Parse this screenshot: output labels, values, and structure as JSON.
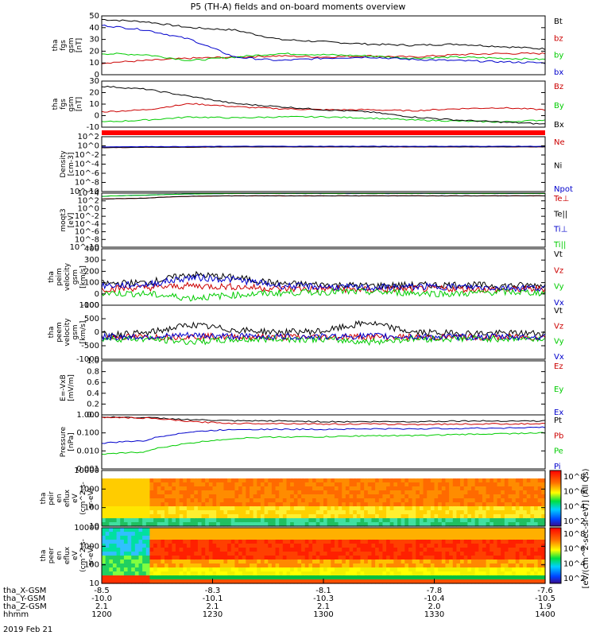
{
  "title": "P5 (TH-A) fields and on-board moments overview",
  "date": "2019 Feb 21",
  "colorbar": {
    "label": "[eV/(cm^2-sec-sr-eV)] (All Qs)",
    "ticks1": [
      "10^8",
      "10^6",
      "10^4",
      "10^2"
    ],
    "ticks2": [
      "10^8",
      "10^6",
      "10^4",
      "10^2"
    ]
  },
  "panels": [
    {
      "id": "fgs-mag",
      "ylabel": [
        "tha",
        "fgs",
        "gsm",
        "[nT]"
      ],
      "yticks": [
        "50",
        "40",
        "30",
        "20",
        "10",
        "0"
      ],
      "legend": [
        {
          "t": "Bt",
          "c": "#000000"
        },
        {
          "t": "bz",
          "c": "#cc0000"
        },
        {
          "t": "by",
          "c": "#00cc00"
        },
        {
          "t": "bx",
          "c": "#0000cc"
        }
      ]
    },
    {
      "id": "fgs-comp",
      "ylabel": [
        "tha",
        "fgs",
        "gsm",
        "[nT]"
      ],
      "yticks": [
        "30",
        "20",
        "10",
        "0",
        "-10"
      ],
      "legend": [
        {
          "t": "Bz",
          "c": "#cc0000"
        },
        {
          "t": "By",
          "c": "#00cc00"
        },
        {
          "t": "Bx",
          "c": "#000000"
        }
      ]
    },
    {
      "id": "density",
      "ylabel": [
        "Density",
        "[cm-3]"
      ],
      "yticks": [
        "10^2",
        "10^0",
        "10^-2",
        "10^-4",
        "10^-6",
        "10^-8",
        "10^-10"
      ],
      "legend": [
        {
          "t": "Ne",
          "c": "#cc0000"
        },
        {
          "t": "Ni",
          "c": "#000000"
        },
        {
          "t": "Npot",
          "c": "#0000cc"
        }
      ]
    },
    {
      "id": "temp",
      "ylabel": [
        "moqt3",
        "[eV]"
      ],
      "yticks": [
        "10^4",
        "10^2",
        "10^0",
        "10^-2",
        "10^-4",
        "10^-6",
        "10^-8",
        "10^-10"
      ],
      "legend": [
        {
          "t": "Te⊥",
          "c": "#cc0000"
        },
        {
          "t": "Te||",
          "c": "#000000"
        },
        {
          "t": "Ti⊥",
          "c": "#0000cc"
        },
        {
          "t": "Ti||",
          "c": "#00cc00"
        }
      ]
    },
    {
      "id": "peim-vel",
      "ylabel": [
        "tha",
        "peim",
        "velocity",
        "gsm",
        "[km/s]"
      ],
      "yticks": [
        "400",
        "300",
        "200",
        "100",
        "0",
        "-100"
      ],
      "legend": [
        {
          "t": "Vt",
          "c": "#000000"
        },
        {
          "t": "Vz",
          "c": "#cc0000"
        },
        {
          "t": "Vy",
          "c": "#00cc00"
        },
        {
          "t": "Vx",
          "c": "#0000cc"
        }
      ]
    },
    {
      "id": "peem-vel",
      "ylabel": [
        "tha",
        "peem",
        "velocity",
        "gsm",
        "[km/s]"
      ],
      "yticks": [
        "1000",
        "500",
        "0",
        "-500",
        "-1000"
      ],
      "legend": [
        {
          "t": "Vt",
          "c": "#000000"
        },
        {
          "t": "Vz",
          "c": "#cc0000"
        },
        {
          "t": "Vy",
          "c": "#00cc00"
        },
        {
          "t": "Vx",
          "c": "#0000cc"
        }
      ]
    },
    {
      "id": "efield",
      "ylabel": [
        "E=-VxB",
        "[mV/m]"
      ],
      "yticks": [
        "1.0",
        "0.8",
        "0.6",
        "0.4",
        "0.2",
        "0.0"
      ],
      "legend": [
        {
          "t": "Ez",
          "c": "#cc0000"
        },
        {
          "t": "Ey",
          "c": "#00cc00"
        },
        {
          "t": "Ex",
          "c": "#0000cc"
        }
      ]
    },
    {
      "id": "pressure",
      "ylabel": [
        "Pressure",
        "[nPa]"
      ],
      "yticks": [
        "1.000",
        "0.100",
        "0.010",
        "0.001"
      ],
      "legend": [
        {
          "t": "Pt",
          "c": "#000000"
        },
        {
          "t": "Pb",
          "c": "#cc0000"
        },
        {
          "t": "Pe",
          "c": "#00cc00"
        },
        {
          "t": "Pi",
          "c": "#0000cc"
        }
      ]
    },
    {
      "id": "peir-spec",
      "ylabel": [
        "tha",
        "peir",
        "en",
        "eflux",
        "eV",
        "(cm^2-s-",
        "sr-eV)"
      ],
      "yticks": [
        "10000",
        "1000",
        "100",
        "10"
      ],
      "legend": []
    },
    {
      "id": "peer-spec",
      "ylabel": [
        "tha",
        "peer",
        "en",
        "eflux",
        "eV",
        "(cm^2-s-",
        "sr-eV)"
      ],
      "yticks": [
        "10000",
        "1000",
        "100",
        "10"
      ],
      "legend": []
    }
  ],
  "xaxis": {
    "row_labels": [
      "tha_X-GSM",
      "tha_Y-GSM",
      "tha_Z-GSM",
      "hhmm"
    ],
    "ticks": [
      {
        "x": "-8.5",
        "y": "-10.0",
        "z": "2.1",
        "t": "1200"
      },
      {
        "x": "-8.3",
        "y": "-10.1",
        "z": "2.1",
        "t": "1230"
      },
      {
        "x": "-8.1",
        "y": "-10.3",
        "z": "2.1",
        "t": "1300"
      },
      {
        "x": "-7.8",
        "y": "-10.4",
        "z": "2.0",
        "t": "1330"
      },
      {
        "x": "-7.6",
        "y": "-10.5",
        "z": "1.9",
        "t": "1400"
      }
    ]
  },
  "chart_data": [
    {
      "type": "line",
      "title": "tha fgs gsm",
      "ylabel": "[nT]",
      "ylim": [
        0,
        50
      ],
      "series": [
        {
          "name": "Bt",
          "color": "#000000",
          "values": [
            47,
            45,
            40,
            38,
            30,
            28,
            26,
            25,
            26,
            24,
            22
          ]
        },
        {
          "name": "bz",
          "color": "#cc0000",
          "values": [
            10,
            12,
            14,
            15,
            16,
            15,
            16,
            15,
            17,
            18,
            18
          ]
        },
        {
          "name": "by",
          "color": "#00cc00",
          "values": [
            18,
            17,
            12,
            15,
            18,
            17,
            16,
            14,
            15,
            14,
            13
          ]
        },
        {
          "name": "bx",
          "color": "#0000cc",
          "values": [
            42,
            38,
            30,
            15,
            12,
            14,
            15,
            13,
            12,
            11,
            10
          ]
        }
      ]
    },
    {
      "type": "line",
      "title": "tha fgs gsm",
      "ylabel": "[nT]",
      "ylim": [
        -15,
        30
      ],
      "series": [
        {
          "name": "Bz",
          "color": "#cc0000",
          "values": [
            0,
            2,
            8,
            5,
            3,
            2,
            2,
            1,
            3,
            4,
            2
          ]
        },
        {
          "name": "By",
          "color": "#00cc00",
          "values": [
            -10,
            -8,
            -5,
            -6,
            -5,
            -5,
            -6,
            -8,
            -9,
            -10,
            -8
          ]
        },
        {
          "name": "Bx",
          "color": "#000000",
          "values": [
            25,
            22,
            15,
            8,
            5,
            2,
            0,
            -5,
            -8,
            -10,
            -12
          ]
        }
      ]
    },
    {
      "type": "line",
      "title": "Density",
      "ylabel": "[cm-3]",
      "ylim": [
        1e-10,
        100
      ],
      "log": true,
      "series": [
        {
          "name": "Ne",
          "color": "#cc0000",
          "values": [
            0.4,
            0.5,
            0.5,
            0.6,
            0.6,
            0.6,
            0.6,
            0.6,
            0.6,
            0.6,
            0.6
          ]
        },
        {
          "name": "Ni",
          "color": "#000000",
          "values": [
            0.4,
            0.5,
            0.5,
            0.6,
            0.6,
            0.6,
            0.6,
            0.6,
            0.6,
            0.6,
            0.6
          ]
        },
        {
          "name": "Npot",
          "color": "#0000cc",
          "values": [
            0.6,
            0.7,
            0.7,
            0.8,
            0.8,
            0.8,
            0.8,
            0.8,
            0.8,
            0.8,
            0.8
          ]
        }
      ]
    },
    {
      "type": "line",
      "title": "moqt3",
      "ylabel": "[eV]",
      "ylim": [
        1e-10,
        10000
      ],
      "log": true,
      "series": [
        {
          "name": "Te⊥",
          "color": "#cc0000",
          "values": [
            300,
            500,
            1500,
            2000,
            2000,
            2000,
            2000,
            2000,
            2000,
            2000,
            2000
          ]
        },
        {
          "name": "Te||",
          "color": "#000000",
          "values": [
            300,
            500,
            1500,
            2000,
            2000,
            2000,
            2000,
            2000,
            2000,
            2000,
            2000
          ]
        },
        {
          "name": "Ti⊥",
          "color": "#0000cc",
          "values": [
            1500,
            3000,
            6000,
            8000,
            8000,
            8000,
            8000,
            8000,
            8000,
            8000,
            8000
          ]
        },
        {
          "name": "Ti||",
          "color": "#00cc00",
          "values": [
            1500,
            3000,
            6000,
            8000,
            8000,
            8000,
            8000,
            8000,
            8000,
            8000,
            8000
          ]
        }
      ]
    },
    {
      "type": "line",
      "title": "tha peim velocity gsm",
      "ylabel": "[km/s]",
      "ylim": [
        -150,
        400
      ],
      "series": [
        {
          "name": "Vt",
          "color": "#000000",
          "values": [
            60,
            70,
            150,
            120,
            60,
            50,
            40,
            45,
            50,
            40,
            45
          ]
        },
        {
          "name": "Vz",
          "color": "#cc0000",
          "values": [
            10,
            20,
            40,
            30,
            10,
            10,
            0,
            10,
            10,
            0,
            10
          ]
        },
        {
          "name": "Vy",
          "color": "#00cc00",
          "values": [
            -30,
            -40,
            -80,
            -50,
            -30,
            -20,
            -20,
            -30,
            -40,
            -20,
            -30
          ]
        },
        {
          "name": "Vx",
          "color": "#0000cc",
          "values": [
            40,
            50,
            120,
            100,
            40,
            30,
            20,
            30,
            30,
            20,
            20
          ]
        }
      ]
    },
    {
      "type": "line",
      "title": "tha peem velocity gsm",
      "ylabel": "[km/s]",
      "ylim": [
        -1000,
        1500
      ],
      "series": [
        {
          "name": "Vt",
          "color": "#000000",
          "values": [
            150,
            200,
            600,
            350,
            250,
            300,
            700,
            250,
            200,
            200,
            200
          ]
        },
        {
          "name": "Vz",
          "color": "#cc0000",
          "values": [
            20,
            30,
            50,
            40,
            20,
            30,
            40,
            20,
            20,
            20,
            20
          ]
        },
        {
          "name": "Vy",
          "color": "#00cc00",
          "values": [
            -50,
            -60,
            -200,
            -100,
            -60,
            -80,
            -200,
            -60,
            -50,
            -50,
            -50
          ]
        },
        {
          "name": "Vx",
          "color": "#0000cc",
          "values": [
            30,
            40,
            100,
            60,
            40,
            40,
            80,
            40,
            30,
            30,
            30
          ]
        }
      ]
    },
    {
      "type": "line",
      "title": "E=-VxB",
      "ylabel": "[mV/m]",
      "ylim": [
        0,
        1
      ],
      "series": [
        {
          "name": "Ez",
          "color": "#cc0000",
          "values": []
        },
        {
          "name": "Ey",
          "color": "#00cc00",
          "values": []
        },
        {
          "name": "Ex",
          "color": "#0000cc",
          "values": []
        }
      ]
    },
    {
      "type": "line",
      "title": "Pressure",
      "ylabel": "[nPa]",
      "ylim": [
        0.0005,
        1.2
      ],
      "log": true,
      "series": [
        {
          "name": "Pt",
          "color": "#000000",
          "values": [
            0.9,
            0.8,
            0.6,
            0.5,
            0.5,
            0.45,
            0.45,
            0.45,
            0.5,
            0.5,
            0.5
          ]
        },
        {
          "name": "Pb",
          "color": "#cc0000",
          "values": [
            0.85,
            0.75,
            0.45,
            0.35,
            0.35,
            0.32,
            0.32,
            0.3,
            0.32,
            0.33,
            0.33
          ]
        },
        {
          "name": "Pe",
          "color": "#00cc00",
          "values": [
            0.004,
            0.006,
            0.02,
            0.04,
            0.05,
            0.05,
            0.06,
            0.06,
            0.07,
            0.08,
            0.09
          ]
        },
        {
          "name": "Pi",
          "color": "#0000cc",
          "values": [
            0.02,
            0.03,
            0.1,
            0.15,
            0.15,
            0.15,
            0.16,
            0.16,
            0.17,
            0.18,
            0.2
          ]
        }
      ]
    },
    {
      "type": "heatmap",
      "title": "tha peir en eflux",
      "ylabel": "eV",
      "ylim": [
        5,
        25000
      ],
      "log": true
    },
    {
      "type": "heatmap",
      "title": "tha peer en eflux",
      "ylabel": "eV",
      "ylim": [
        5,
        25000
      ],
      "log": true
    }
  ]
}
